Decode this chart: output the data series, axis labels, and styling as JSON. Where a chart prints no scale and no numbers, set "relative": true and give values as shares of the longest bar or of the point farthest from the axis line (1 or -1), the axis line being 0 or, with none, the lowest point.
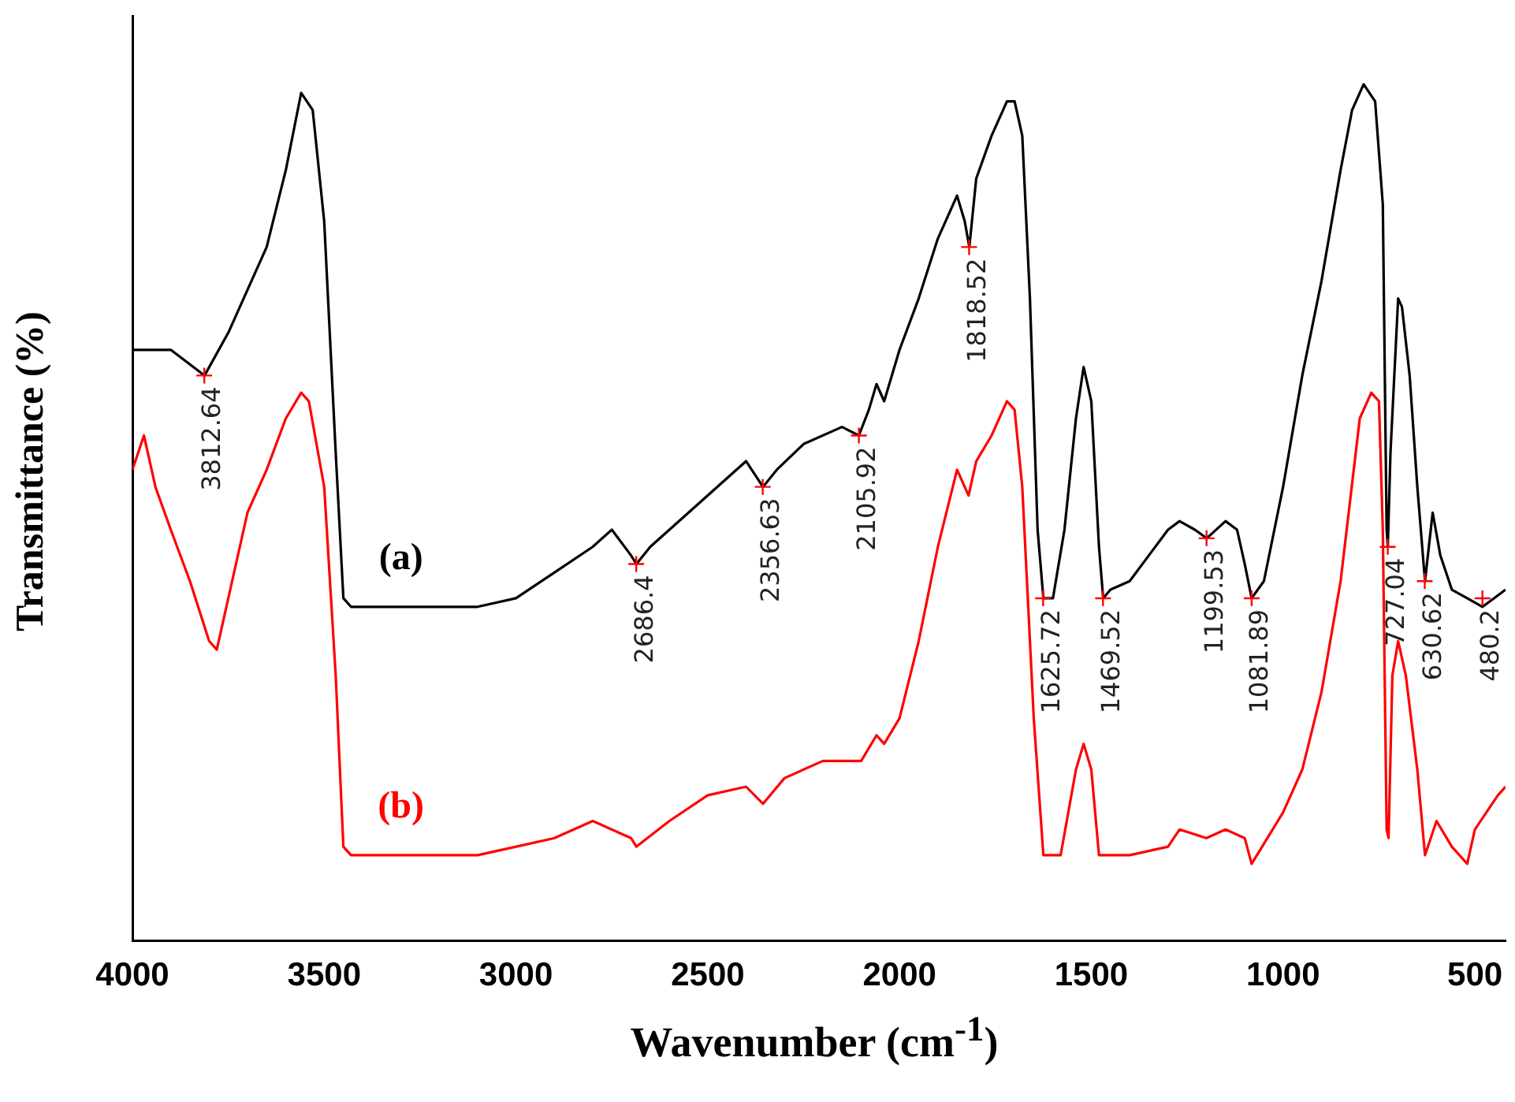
{
  "chart_data": {
    "type": "line",
    "xlabel": "Wavenumber (cm$^{-1}$)",
    "ylabel": "Transmittance (%)",
    "relative": true,
    "xlim": [
      4000,
      420
    ],
    "xticks": [
      4000,
      3500,
      3000,
      2500,
      2000,
      1500,
      1000,
      500
    ],
    "grid": false,
    "legend": false,
    "marker": "none",
    "line_style": "solid",
    "series": [
      {
        "name": "(a)",
        "color": "#000000",
        "x": [
          4000,
          3900,
          3812,
          3750,
          3650,
          3600,
          3560,
          3530,
          3500,
          3470,
          3450,
          3430,
          3300,
          3100,
          3000,
          2900,
          2800,
          2750,
          2700,
          2686,
          2650,
          2550,
          2450,
          2400,
          2356,
          2320,
          2250,
          2150,
          2106,
          2080,
          2060,
          2040,
          2000,
          1950,
          1900,
          1850,
          1830,
          1818,
          1800,
          1760,
          1720,
          1700,
          1680,
          1660,
          1640,
          1625,
          1600,
          1570,
          1540,
          1520,
          1500,
          1480,
          1469,
          1450,
          1400,
          1350,
          1300,
          1270,
          1230,
          1199,
          1150,
          1120,
          1100,
          1082,
          1050,
          1000,
          950,
          900,
          850,
          820,
          790,
          760,
          740,
          730,
          727,
          720,
          700,
          690,
          670,
          650,
          630,
          610,
          590,
          560,
          520,
          480,
          450,
          420
        ],
        "values": [
          0.69,
          0.69,
          0.66,
          0.71,
          0.81,
          0.9,
          0.99,
          0.97,
          0.84,
          0.57,
          0.4,
          0.39,
          0.39,
          0.39,
          0.4,
          0.43,
          0.46,
          0.48,
          0.45,
          0.44,
          0.46,
          0.5,
          0.54,
          0.56,
          0.53,
          0.55,
          0.58,
          0.6,
          0.59,
          0.62,
          0.65,
          0.63,
          0.69,
          0.75,
          0.82,
          0.87,
          0.84,
          0.81,
          0.89,
          0.94,
          0.98,
          0.98,
          0.94,
          0.75,
          0.48,
          0.4,
          0.4,
          0.48,
          0.61,
          0.67,
          0.63,
          0.46,
          0.4,
          0.41,
          0.42,
          0.45,
          0.48,
          0.49,
          0.48,
          0.47,
          0.49,
          0.48,
          0.44,
          0.4,
          0.42,
          0.53,
          0.66,
          0.77,
          0.9,
          0.97,
          1.0,
          0.98,
          0.86,
          0.48,
          0.46,
          0.57,
          0.75,
          0.74,
          0.66,
          0.53,
          0.42,
          0.5,
          0.45,
          0.41,
          0.4,
          0.39,
          0.4,
          0.41
        ]
      },
      {
        "name": "(b)",
        "color": "#ff0000",
        "x": [
          4000,
          3970,
          3940,
          3900,
          3850,
          3800,
          3780,
          3750,
          3700,
          3650,
          3600,
          3560,
          3540,
          3500,
          3470,
          3450,
          3430,
          3300,
          3100,
          3000,
          2900,
          2800,
          2700,
          2686,
          2600,
          2500,
          2400,
          2356,
          2300,
          2200,
          2100,
          2060,
          2040,
          2000,
          1950,
          1900,
          1850,
          1820,
          1800,
          1760,
          1720,
          1700,
          1680,
          1650,
          1625,
          1580,
          1540,
          1520,
          1500,
          1480,
          1400,
          1300,
          1270,
          1200,
          1150,
          1100,
          1082,
          1000,
          950,
          900,
          850,
          800,
          770,
          750,
          740,
          730,
          725,
          715,
          700,
          680,
          650,
          630,
          600,
          560,
          520,
          500,
          470,
          440,
          420
        ],
        "values": [
          0.55,
          0.59,
          0.53,
          0.48,
          0.42,
          0.35,
          0.34,
          0.4,
          0.5,
          0.55,
          0.61,
          0.64,
          0.63,
          0.53,
          0.31,
          0.11,
          0.1,
          0.1,
          0.1,
          0.11,
          0.12,
          0.14,
          0.12,
          0.11,
          0.14,
          0.17,
          0.18,
          0.16,
          0.19,
          0.21,
          0.21,
          0.24,
          0.23,
          0.26,
          0.35,
          0.46,
          0.55,
          0.52,
          0.56,
          0.59,
          0.63,
          0.62,
          0.53,
          0.26,
          0.1,
          0.1,
          0.2,
          0.23,
          0.2,
          0.1,
          0.1,
          0.11,
          0.13,
          0.12,
          0.13,
          0.12,
          0.09,
          0.15,
          0.2,
          0.29,
          0.42,
          0.61,
          0.64,
          0.63,
          0.48,
          0.13,
          0.12,
          0.31,
          0.35,
          0.31,
          0.2,
          0.1,
          0.14,
          0.11,
          0.09,
          0.13,
          0.15,
          0.17,
          0.18
        ]
      }
    ],
    "annotations": [
      {
        "text": "3812.64",
        "x": 3812.64,
        "y": 0.66
      },
      {
        "text": "2686.4",
        "x": 2686.4,
        "y": 0.44
      },
      {
        "text": "2356.63",
        "x": 2356.63,
        "y": 0.53
      },
      {
        "text": "2105.92",
        "x": 2105.92,
        "y": 0.59
      },
      {
        "text": "1818.52",
        "x": 1818.52,
        "y": 0.81
      },
      {
        "text": "1625.72",
        "x": 1625.72,
        "y": 0.4
      },
      {
        "text": "1469.52",
        "x": 1469.52,
        "y": 0.4
      },
      {
        "text": "1199.53",
        "x": 1199.53,
        "y": 0.47
      },
      {
        "text": "1081.89",
        "x": 1081.89,
        "y": 0.4
      },
      {
        "text": "727.04",
        "x": 727.04,
        "y": 0.46
      },
      {
        "text": "630.62",
        "x": 630.62,
        "y": 0.42
      },
      {
        "text": "480.2",
        "x": 480.2,
        "y": 0.4
      }
    ]
  }
}
